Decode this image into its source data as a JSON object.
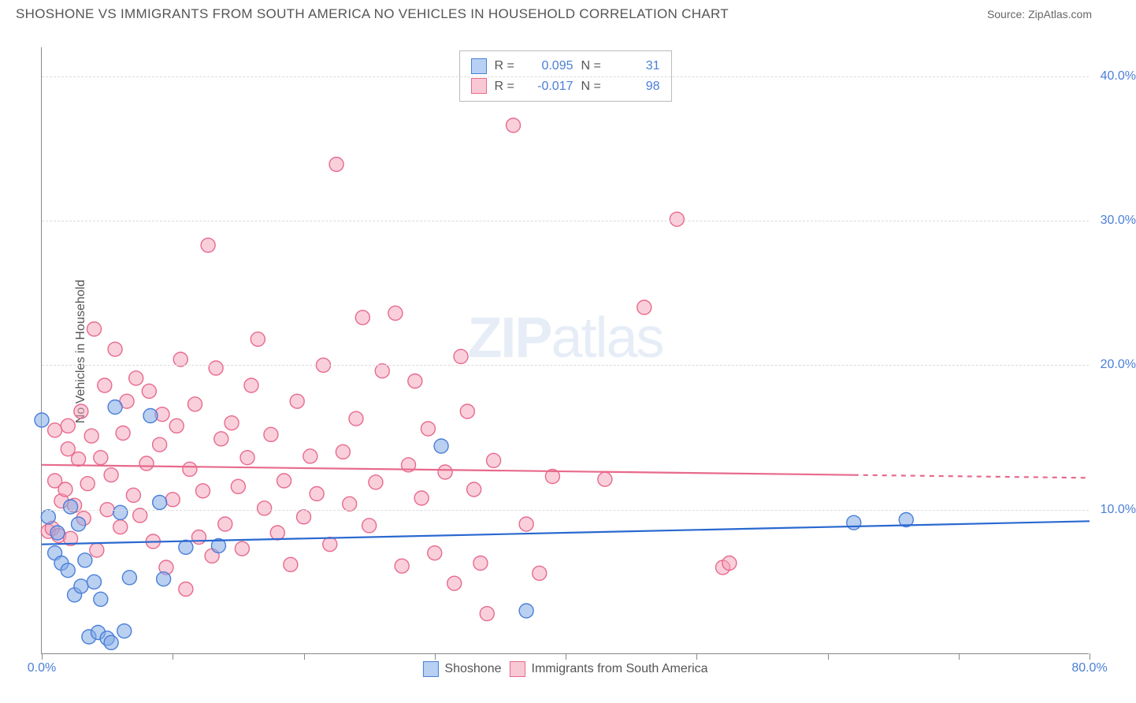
{
  "header": {
    "title": "SHOSHONE VS IMMIGRANTS FROM SOUTH AMERICA NO VEHICLES IN HOUSEHOLD CORRELATION CHART",
    "source": "Source: ZipAtlas.com"
  },
  "watermark": {
    "zip": "ZIP",
    "atlas": "atlas"
  },
  "y_axis": {
    "label": "No Vehicles in Household",
    "min": 0,
    "max": 42,
    "ticks": [
      10,
      20,
      30,
      40
    ],
    "tick_labels": [
      "10.0%",
      "20.0%",
      "30.0%",
      "40.0%"
    ],
    "grid_color": "#dcdcdc",
    "label_color": "#4a7fd8"
  },
  "x_axis": {
    "min": 0,
    "max": 80,
    "ticks": [
      0,
      10,
      20,
      30,
      40,
      50,
      60,
      70,
      80
    ],
    "tick_labels": {
      "0": "0.0%",
      "80": "80.0%"
    },
    "label_color": "#4a7fd8"
  },
  "legend_top": {
    "series": [
      {
        "swatch_fill": "#b7d0f3",
        "swatch_border": "#4a7fd8",
        "r": "0.095",
        "n": "31"
      },
      {
        "swatch_fill": "#f8c9d4",
        "swatch_border": "#e76a8c",
        "r": "-0.017",
        "n": "98"
      }
    ],
    "r_label": "R =",
    "n_label": "N ="
  },
  "legend_bottom": {
    "items": [
      {
        "swatch_fill": "#b7d0f3",
        "swatch_border": "#4a7fd8",
        "label": "Shoshone"
      },
      {
        "swatch_fill": "#f8c9d4",
        "swatch_border": "#e76a8c",
        "label": "Immigrants from South America"
      }
    ]
  },
  "series": {
    "shoshone": {
      "marker_fill": "rgba(130,170,230,0.55)",
      "marker_stroke": "#4a7fd8",
      "marker_radius": 9,
      "line_color": "#2968d0",
      "line_width": 2.2,
      "trend": {
        "x1": 0,
        "y1": 7.6,
        "x2": 80,
        "y2": 9.2
      },
      "points": [
        [
          0,
          16.2
        ],
        [
          0.5,
          9.5
        ],
        [
          1,
          7
        ],
        [
          1.2,
          8.4
        ],
        [
          1.5,
          6.3
        ],
        [
          2,
          5.8
        ],
        [
          2.2,
          10.2
        ],
        [
          2.5,
          4.1
        ],
        [
          2.8,
          9
        ],
        [
          3,
          4.7
        ],
        [
          3.3,
          6.5
        ],
        [
          3.6,
          1.2
        ],
        [
          4,
          5
        ],
        [
          4.3,
          1.5
        ],
        [
          4.5,
          3.8
        ],
        [
          5,
          1.1
        ],
        [
          5.3,
          0.8
        ],
        [
          5.6,
          17.1
        ],
        [
          6,
          9.8
        ],
        [
          6.3,
          1.6
        ],
        [
          6.7,
          5.3
        ],
        [
          8.3,
          16.5
        ],
        [
          9,
          10.5
        ],
        [
          9.3,
          5.2
        ],
        [
          11,
          7.4
        ],
        [
          13.5,
          7.5
        ],
        [
          30.5,
          14.4
        ],
        [
          37,
          3.0
        ],
        [
          62,
          9.1
        ],
        [
          66,
          9.3
        ]
      ]
    },
    "immigrants": {
      "marker_fill": "rgba(245,160,185,0.5)",
      "marker_stroke": "#e76a8c",
      "marker_radius": 9,
      "line_color": "#e76a8c",
      "line_width": 2.2,
      "trend_solid": {
        "x1": 0,
        "y1": 13.1,
        "x2": 62,
        "y2": 12.4
      },
      "trend_dash": {
        "x1": 62,
        "y1": 12.4,
        "x2": 80,
        "y2": 12.2
      },
      "points": [
        [
          0.5,
          8.5
        ],
        [
          0.8,
          8.7
        ],
        [
          1,
          12
        ],
        [
          1,
          15.5
        ],
        [
          1.3,
          8.2
        ],
        [
          1.5,
          10.6
        ],
        [
          1.8,
          11.4
        ],
        [
          2,
          14.2
        ],
        [
          2,
          15.8
        ],
        [
          2.2,
          8
        ],
        [
          2.5,
          10.3
        ],
        [
          2.8,
          13.5
        ],
        [
          3,
          16.8
        ],
        [
          3.2,
          9.4
        ],
        [
          3.5,
          11.8
        ],
        [
          3.8,
          15.1
        ],
        [
          4,
          22.5
        ],
        [
          4.2,
          7.2
        ],
        [
          4.5,
          13.6
        ],
        [
          4.8,
          18.6
        ],
        [
          5,
          10
        ],
        [
          5.3,
          12.4
        ],
        [
          5.6,
          21.1
        ],
        [
          6,
          8.8
        ],
        [
          6.2,
          15.3
        ],
        [
          6.5,
          17.5
        ],
        [
          7,
          11
        ],
        [
          7.2,
          19.1
        ],
        [
          7.5,
          9.6
        ],
        [
          8,
          13.2
        ],
        [
          8.2,
          18.2
        ],
        [
          8.5,
          7.8
        ],
        [
          9,
          14.5
        ],
        [
          9.2,
          16.6
        ],
        [
          9.5,
          6.0
        ],
        [
          10,
          10.7
        ],
        [
          10.3,
          15.8
        ],
        [
          10.6,
          20.4
        ],
        [
          11,
          4.5
        ],
        [
          11.3,
          12.8
        ],
        [
          11.7,
          17.3
        ],
        [
          12,
          8.1
        ],
        [
          12.3,
          11.3
        ],
        [
          12.7,
          28.3
        ],
        [
          13,
          6.8
        ],
        [
          13.3,
          19.8
        ],
        [
          13.7,
          14.9
        ],
        [
          14,
          9.0
        ],
        [
          14.5,
          16.0
        ],
        [
          15,
          11.6
        ],
        [
          15.3,
          7.3
        ],
        [
          15.7,
          13.6
        ],
        [
          16,
          18.6
        ],
        [
          16.5,
          21.8
        ],
        [
          17,
          10.1
        ],
        [
          17.5,
          15.2
        ],
        [
          18,
          8.4
        ],
        [
          18.5,
          12.0
        ],
        [
          19,
          6.2
        ],
        [
          19.5,
          17.5
        ],
        [
          20,
          9.5
        ],
        [
          20.5,
          13.7
        ],
        [
          21,
          11.1
        ],
        [
          21.5,
          20.0
        ],
        [
          22,
          7.6
        ],
        [
          22.5,
          33.9
        ],
        [
          23,
          14.0
        ],
        [
          23.5,
          10.4
        ],
        [
          24,
          16.3
        ],
        [
          24.5,
          23.3
        ],
        [
          25,
          8.9
        ],
        [
          25.5,
          11.9
        ],
        [
          26,
          19.6
        ],
        [
          27,
          23.6
        ],
        [
          27.5,
          6.1
        ],
        [
          28,
          13.1
        ],
        [
          28.5,
          18.9
        ],
        [
          29,
          10.8
        ],
        [
          29.5,
          15.6
        ],
        [
          30,
          7.0
        ],
        [
          30.8,
          12.6
        ],
        [
          31.5,
          4.9
        ],
        [
          32,
          20.6
        ],
        [
          32.5,
          16.8
        ],
        [
          33,
          11.4
        ],
        [
          33.5,
          6.3
        ],
        [
          34,
          2.8
        ],
        [
          34.5,
          13.4
        ],
        [
          36,
          36.6
        ],
        [
          37,
          9.0
        ],
        [
          38,
          5.6
        ],
        [
          39,
          12.3
        ],
        [
          43,
          12.1
        ],
        [
          46,
          24.0
        ],
        [
          48.5,
          30.1
        ],
        [
          52,
          6.0
        ],
        [
          52.5,
          6.3
        ]
      ]
    }
  },
  "colors": {
    "bg": "#ffffff",
    "axis": "#888888",
    "text": "#555555"
  }
}
